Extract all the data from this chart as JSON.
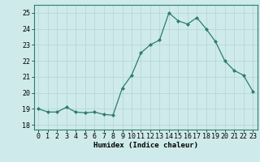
{
  "x": [
    0,
    1,
    2,
    3,
    4,
    5,
    6,
    7,
    8,
    9,
    10,
    11,
    12,
    13,
    14,
    15,
    16,
    17,
    18,
    19,
    20,
    21,
    22,
    23
  ],
  "y": [
    19.0,
    18.8,
    18.8,
    19.1,
    18.8,
    18.75,
    18.8,
    18.65,
    18.6,
    20.3,
    21.1,
    22.5,
    23.0,
    23.3,
    25.0,
    24.5,
    24.3,
    24.7,
    24.0,
    23.2,
    22.0,
    21.4,
    21.1,
    20.1
  ],
  "line_color": "#2d7d6e",
  "marker": "D",
  "marker_size": 2.0,
  "bg_color": "#ceeaea",
  "grid_color": "#b8d8d8",
  "xlabel": "Humidex (Indice chaleur)",
  "xlim": [
    -0.5,
    23.5
  ],
  "ylim": [
    17.7,
    25.5
  ],
  "yticks": [
    18,
    19,
    20,
    21,
    22,
    23,
    24,
    25
  ],
  "xticks": [
    0,
    1,
    2,
    3,
    4,
    5,
    6,
    7,
    8,
    9,
    10,
    11,
    12,
    13,
    14,
    15,
    16,
    17,
    18,
    19,
    20,
    21,
    22,
    23
  ],
  "label_fontsize": 6.5,
  "tick_fontsize": 6.0
}
